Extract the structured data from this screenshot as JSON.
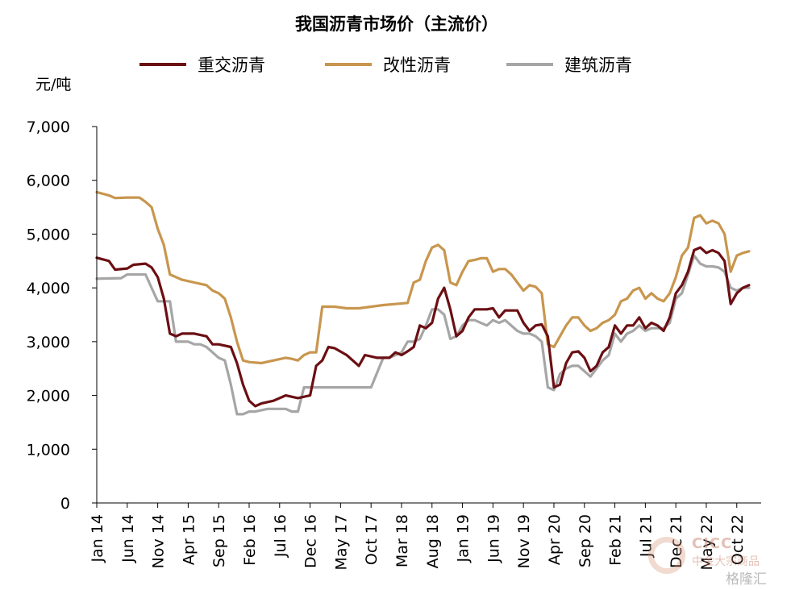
{
  "chart_data": {
    "type": "line",
    "title": "我国沥青市场价（主流价）",
    "ylabel": "元/吨",
    "ylim": [
      0,
      7000
    ],
    "yticks": [
      "7,000",
      "6,000",
      "5,000",
      "4,000",
      "3,000",
      "2,000",
      "1,000",
      "0"
    ],
    "ytick_values": [
      7000,
      6000,
      5000,
      4000,
      3000,
      2000,
      1000,
      0
    ],
    "xlim": [
      0,
      109
    ],
    "xticks": [
      {
        "label": "Jan 14",
        "x": 0
      },
      {
        "label": "Jun 14",
        "x": 5
      },
      {
        "label": "Nov 14",
        "x": 10
      },
      {
        "label": "Apr 15",
        "x": 15
      },
      {
        "label": "Sep 15",
        "x": 20
      },
      {
        "label": "Feb 16",
        "x": 25
      },
      {
        "label": "Jul 16",
        "x": 30
      },
      {
        "label": "Dec 16",
        "x": 35
      },
      {
        "label": "May 17",
        "x": 40
      },
      {
        "label": "Oct 17",
        "x": 45
      },
      {
        "label": "Mar 18",
        "x": 50
      },
      {
        "label": "Aug 18",
        "x": 55
      },
      {
        "label": "Jan 19",
        "x": 60
      },
      {
        "label": "Jun 19",
        "x": 65
      },
      {
        "label": "Nov 19",
        "x": 70
      },
      {
        "label": "Apr 20",
        "x": 75
      },
      {
        "label": "Sep 20",
        "x": 80
      },
      {
        "label": "Feb 21",
        "x": 85
      },
      {
        "label": "Jul 21",
        "x": 90
      },
      {
        "label": "Dec 21",
        "x": 95
      },
      {
        "label": "May 22",
        "x": 100
      },
      {
        "label": "Oct 22",
        "x": 105
      }
    ],
    "legend_position": "top",
    "series": [
      {
        "name": "重交沥青",
        "color": "#6b0f13",
        "points": [
          [
            0,
            4560
          ],
          [
            2,
            4500
          ],
          [
            3,
            4340
          ],
          [
            5,
            4360
          ],
          [
            6,
            4430
          ],
          [
            8,
            4450
          ],
          [
            9,
            4380
          ],
          [
            10,
            4200
          ],
          [
            11,
            3800
          ],
          [
            12,
            3150
          ],
          [
            13,
            3100
          ],
          [
            14,
            3150
          ],
          [
            16,
            3150
          ],
          [
            18,
            3100
          ],
          [
            19,
            2950
          ],
          [
            20,
            2950
          ],
          [
            22,
            2900
          ],
          [
            23,
            2600
          ],
          [
            24,
            2200
          ],
          [
            25,
            1900
          ],
          [
            26,
            1800
          ],
          [
            27,
            1850
          ],
          [
            29,
            1900
          ],
          [
            31,
            2000
          ],
          [
            33,
            1950
          ],
          [
            35,
            2000
          ],
          [
            36,
            2550
          ],
          [
            37,
            2650
          ],
          [
            38,
            2900
          ],
          [
            39,
            2880
          ],
          [
            41,
            2750
          ],
          [
            43,
            2550
          ],
          [
            44,
            2750
          ],
          [
            46,
            2700
          ],
          [
            48,
            2700
          ],
          [
            49,
            2800
          ],
          [
            50,
            2750
          ],
          [
            51,
            2820
          ],
          [
            52,
            2900
          ],
          [
            53,
            3300
          ],
          [
            54,
            3250
          ],
          [
            55,
            3350
          ],
          [
            56,
            3800
          ],
          [
            57,
            4000
          ],
          [
            58,
            3600
          ],
          [
            59,
            3100
          ],
          [
            60,
            3200
          ],
          [
            61,
            3450
          ],
          [
            62,
            3600
          ],
          [
            64,
            3600
          ],
          [
            65,
            3620
          ],
          [
            66,
            3450
          ],
          [
            67,
            3580
          ],
          [
            69,
            3580
          ],
          [
            70,
            3350
          ],
          [
            71,
            3200
          ],
          [
            72,
            3300
          ],
          [
            73,
            3320
          ],
          [
            74,
            3100
          ],
          [
            75,
            2150
          ],
          [
            76,
            2200
          ],
          [
            77,
            2600
          ],
          [
            78,
            2800
          ],
          [
            79,
            2820
          ],
          [
            80,
            2700
          ],
          [
            81,
            2450
          ],
          [
            82,
            2550
          ],
          [
            83,
            2800
          ],
          [
            84,
            2900
          ],
          [
            85,
            3300
          ],
          [
            86,
            3150
          ],
          [
            87,
            3300
          ],
          [
            88,
            3300
          ],
          [
            89,
            3450
          ],
          [
            90,
            3250
          ],
          [
            91,
            3350
          ],
          [
            92,
            3300
          ],
          [
            93,
            3200
          ],
          [
            94,
            3450
          ],
          [
            95,
            3900
          ],
          [
            96,
            4050
          ],
          [
            97,
            4300
          ],
          [
            98,
            4700
          ],
          [
            99,
            4750
          ],
          [
            100,
            4650
          ],
          [
            101,
            4700
          ],
          [
            102,
            4650
          ],
          [
            103,
            4500
          ],
          [
            104,
            3700
          ],
          [
            105,
            3900
          ],
          [
            106,
            4000
          ],
          [
            107,
            4050
          ]
        ]
      },
      {
        "name": "改性沥青",
        "color": "#c8964e",
        "points": [
          [
            0,
            5780
          ],
          [
            2,
            5720
          ],
          [
            3,
            5670
          ],
          [
            5,
            5680
          ],
          [
            7,
            5680
          ],
          [
            8,
            5600
          ],
          [
            9,
            5500
          ],
          [
            10,
            5100
          ],
          [
            11,
            4800
          ],
          [
            12,
            4250
          ],
          [
            13,
            4200
          ],
          [
            14,
            4150
          ],
          [
            16,
            4100
          ],
          [
            18,
            4050
          ],
          [
            19,
            3950
          ],
          [
            20,
            3900
          ],
          [
            21,
            3800
          ],
          [
            22,
            3450
          ],
          [
            23,
            3000
          ],
          [
            24,
            2650
          ],
          [
            25,
            2620
          ],
          [
            27,
            2600
          ],
          [
            29,
            2650
          ],
          [
            31,
            2700
          ],
          [
            32,
            2680
          ],
          [
            33,
            2650
          ],
          [
            34,
            2750
          ],
          [
            35,
            2800
          ],
          [
            36,
            2800
          ],
          [
            37,
            3650
          ],
          [
            39,
            3650
          ],
          [
            41,
            3620
          ],
          [
            43,
            3620
          ],
          [
            45,
            3650
          ],
          [
            47,
            3680
          ],
          [
            49,
            3700
          ],
          [
            51,
            3720
          ],
          [
            52,
            4100
          ],
          [
            53,
            4150
          ],
          [
            54,
            4500
          ],
          [
            55,
            4750
          ],
          [
            56,
            4800
          ],
          [
            57,
            4700
          ],
          [
            58,
            4100
          ],
          [
            59,
            4050
          ],
          [
            60,
            4300
          ],
          [
            61,
            4500
          ],
          [
            62,
            4520
          ],
          [
            63,
            4550
          ],
          [
            64,
            4550
          ],
          [
            65,
            4300
          ],
          [
            66,
            4350
          ],
          [
            67,
            4350
          ],
          [
            68,
            4250
          ],
          [
            69,
            4100
          ],
          [
            70,
            3950
          ],
          [
            71,
            4050
          ],
          [
            72,
            4020
          ],
          [
            73,
            3900
          ],
          [
            74,
            2950
          ],
          [
            75,
            2900
          ],
          [
            76,
            3100
          ],
          [
            77,
            3300
          ],
          [
            78,
            3450
          ],
          [
            79,
            3450
          ],
          [
            80,
            3300
          ],
          [
            81,
            3200
          ],
          [
            82,
            3250
          ],
          [
            83,
            3350
          ],
          [
            84,
            3400
          ],
          [
            85,
            3500
          ],
          [
            86,
            3750
          ],
          [
            87,
            3800
          ],
          [
            88,
            3950
          ],
          [
            89,
            4000
          ],
          [
            90,
            3800
          ],
          [
            91,
            3900
          ],
          [
            92,
            3800
          ],
          [
            93,
            3750
          ],
          [
            94,
            3900
          ],
          [
            95,
            4200
          ],
          [
            96,
            4600
          ],
          [
            97,
            4750
          ],
          [
            98,
            5300
          ],
          [
            99,
            5350
          ],
          [
            100,
            5200
          ],
          [
            101,
            5250
          ],
          [
            102,
            5200
          ],
          [
            103,
            5000
          ],
          [
            104,
            4300
          ],
          [
            105,
            4600
          ],
          [
            106,
            4650
          ],
          [
            107,
            4680
          ]
        ]
      },
      {
        "name": "建筑沥青",
        "color": "#a6a6a6",
        "points": [
          [
            0,
            4170
          ],
          [
            4,
            4180
          ],
          [
            5,
            4250
          ],
          [
            8,
            4250
          ],
          [
            9,
            4000
          ],
          [
            10,
            3750
          ],
          [
            11,
            3750
          ],
          [
            12,
            3750
          ],
          [
            13,
            3000
          ],
          [
            14,
            3000
          ],
          [
            15,
            3000
          ],
          [
            16,
            2950
          ],
          [
            17,
            2950
          ],
          [
            18,
            2900
          ],
          [
            19,
            2800
          ],
          [
            20,
            2700
          ],
          [
            21,
            2650
          ],
          [
            22,
            2200
          ],
          [
            23,
            1650
          ],
          [
            24,
            1650
          ],
          [
            25,
            1700
          ],
          [
            26,
            1700
          ],
          [
            28,
            1750
          ],
          [
            31,
            1750
          ],
          [
            32,
            1700
          ],
          [
            33,
            1700
          ],
          [
            34,
            2150
          ],
          [
            38,
            2150
          ],
          [
            40,
            2150
          ],
          [
            42,
            2150
          ],
          [
            45,
            2150
          ],
          [
            47,
            2700
          ],
          [
            48,
            2700
          ],
          [
            50,
            2800
          ],
          [
            51,
            3000
          ],
          [
            52,
            3000
          ],
          [
            53,
            3050
          ],
          [
            54,
            3300
          ],
          [
            55,
            3600
          ],
          [
            56,
            3600
          ],
          [
            57,
            3500
          ],
          [
            58,
            3050
          ],
          [
            59,
            3100
          ],
          [
            60,
            3300
          ],
          [
            61,
            3400
          ],
          [
            62,
            3400
          ],
          [
            64,
            3300
          ],
          [
            65,
            3400
          ],
          [
            66,
            3350
          ],
          [
            67,
            3400
          ],
          [
            69,
            3200
          ],
          [
            70,
            3150
          ],
          [
            71,
            3150
          ],
          [
            72,
            3100
          ],
          [
            73,
            3000
          ],
          [
            74,
            2150
          ],
          [
            75,
            2100
          ],
          [
            76,
            2400
          ],
          [
            77,
            2500
          ],
          [
            78,
            2550
          ],
          [
            79,
            2550
          ],
          [
            80,
            2450
          ],
          [
            81,
            2350
          ],
          [
            82,
            2500
          ],
          [
            83,
            2650
          ],
          [
            84,
            2750
          ],
          [
            85,
            3150
          ],
          [
            86,
            3000
          ],
          [
            87,
            3150
          ],
          [
            88,
            3200
          ],
          [
            89,
            3300
          ],
          [
            90,
            3200
          ],
          [
            91,
            3250
          ],
          [
            92,
            3250
          ],
          [
            93,
            3250
          ],
          [
            94,
            3350
          ],
          [
            95,
            3800
          ],
          [
            96,
            3900
          ],
          [
            97,
            4250
          ],
          [
            98,
            4600
          ],
          [
            99,
            4450
          ],
          [
            100,
            4400
          ],
          [
            101,
            4400
          ],
          [
            102,
            4380
          ],
          [
            103,
            4300
          ],
          [
            104,
            4000
          ],
          [
            105,
            3950
          ],
          [
            106,
            4000
          ],
          [
            107,
            4000
          ]
        ]
      }
    ]
  },
  "watermark": {
    "line1": "CICC",
    "line2": "中金大宗商品",
    "line3": "格隆汇"
  }
}
